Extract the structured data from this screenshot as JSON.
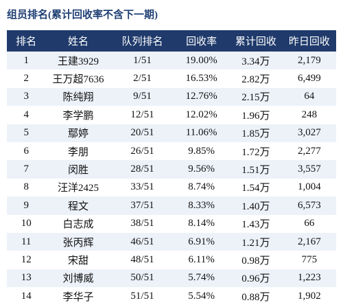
{
  "header": {
    "title": "组员排名(累计回收率不含下一期)"
  },
  "table": {
    "columns": [
      "排名",
      "姓名",
      "队列排名",
      "回收率",
      "累计回收",
      "昨日回收"
    ],
    "rows": [
      [
        "1",
        "王建3929",
        "1/51",
        "19.00%",
        "3.34万",
        "2,179"
      ],
      [
        "2",
        "王万超7636",
        "2/51",
        "16.53%",
        "2.82万",
        "6,499"
      ],
      [
        "3",
        "陈纯翔",
        "9/51",
        "12.76%",
        "2.15万",
        "64"
      ],
      [
        "4",
        "李学鹏",
        "12/51",
        "12.02%",
        "1.96万",
        "248"
      ],
      [
        "5",
        "鄢婷",
        "20/51",
        "11.06%",
        "1.85万",
        "3,027"
      ],
      [
        "6",
        "李朋",
        "26/51",
        "9.85%",
        "1.72万",
        "2,277"
      ],
      [
        "7",
        "闵胜",
        "28/51",
        "9.56%",
        "1.51万",
        "3,557"
      ],
      [
        "8",
        "汪洋2425",
        "33/51",
        "8.74%",
        "1.54万",
        "1,004"
      ],
      [
        "9",
        "程文",
        "37/51",
        "8.33%",
        "1.40万",
        "6,573"
      ],
      [
        "10",
        "白志成",
        "38/51",
        "8.14%",
        "1.43万",
        "66"
      ],
      [
        "11",
        "张丙辉",
        "46/51",
        "6.91%",
        "1.21万",
        "2,167"
      ],
      [
        "12",
        "宋甜",
        "48/51",
        "6.11%",
        "0.98万",
        "775"
      ],
      [
        "13",
        "刘博威",
        "50/51",
        "5.74%",
        "0.96万",
        "1,223"
      ],
      [
        "14",
        "李华子",
        "51/51",
        "5.54%",
        "0.88万",
        "1,902"
      ]
    ]
  }
}
